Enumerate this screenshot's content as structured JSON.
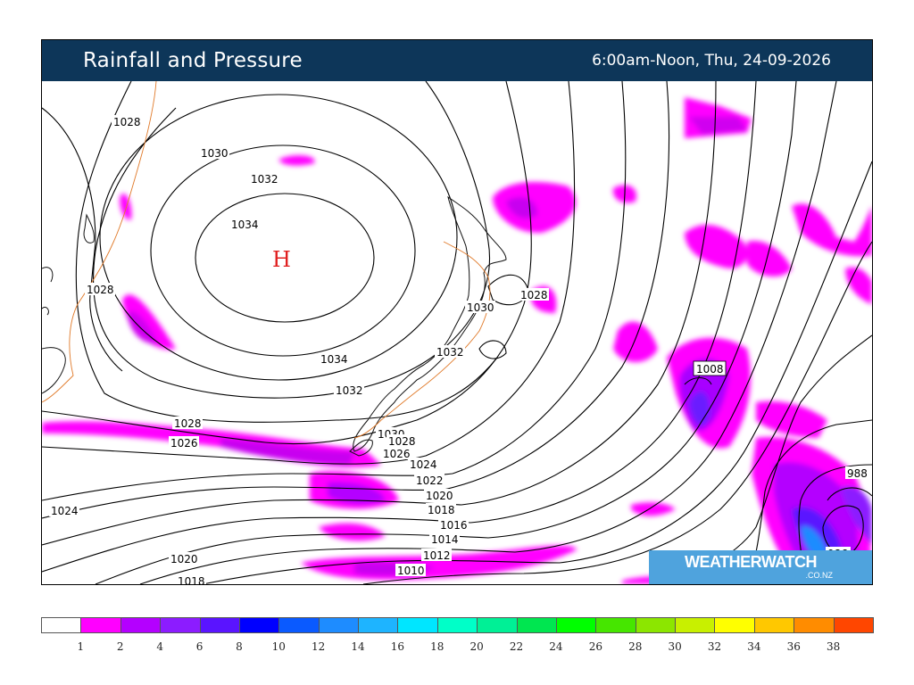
{
  "header": {
    "title": "Rainfall and Pressure",
    "period": "6:00am-Noon, Thu, 24-09-2026"
  },
  "brand": {
    "name_part1": "WEATHER",
    "name_part2": "WATCH",
    "domain": ".CO.NZ"
  },
  "map": {
    "high_marker": "H",
    "isobar_labels": [
      "1028",
      "1030",
      "1032",
      "1034",
      "1028",
      "1034",
      "1032",
      "1030",
      "1028",
      "1032",
      "1028",
      "1026",
      "1030",
      "1028",
      "1026",
      "1024",
      "1022",
      "1020",
      "1018",
      "1016",
      "1014",
      "1012",
      "1010",
      "1024",
      "1020",
      "1018",
      "1016",
      "1014",
      "1008",
      "998",
      "988",
      "986"
    ]
  },
  "legend": {
    "labels": [
      "1",
      "2",
      "4",
      "6",
      "8",
      "10",
      "12",
      "14",
      "16",
      "18",
      "20",
      "22",
      "24",
      "26",
      "28",
      "30",
      "32",
      "34",
      "36",
      "38"
    ],
    "colors": [
      "#ffffff",
      "#ff00ff",
      "#b400ff",
      "#8c1cff",
      "#5a14ff",
      "#0000ff",
      "#0a5aff",
      "#1e8cff",
      "#1eb4ff",
      "#00e6ff",
      "#00ffc8",
      "#00f096",
      "#00e650",
      "#00ff00",
      "#46e600",
      "#8ce600",
      "#c8f000",
      "#ffff00",
      "#ffc800",
      "#ff8c00",
      "#ff4600"
    ]
  }
}
